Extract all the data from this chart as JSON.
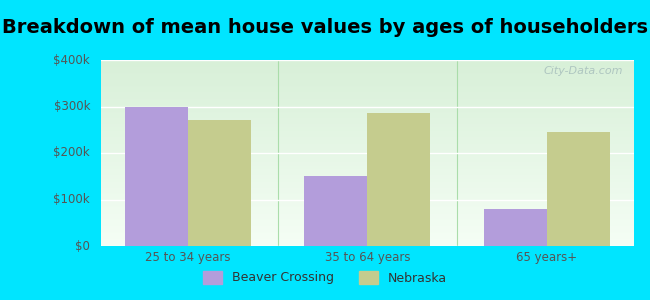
{
  "title": "Breakdown of mean house values by ages of householders",
  "categories": [
    "25 to 34 years",
    "35 to 64 years",
    "65 years+"
  ],
  "beaver_crossing": [
    300000,
    150000,
    80000
  ],
  "nebraska": [
    270000,
    285000,
    245000
  ],
  "bar_color_beaver": "#b39ddb",
  "bar_color_nebraska": "#c5cc8e",
  "ylim": [
    0,
    400000
  ],
  "yticks": [
    0,
    100000,
    200000,
    300000,
    400000
  ],
  "ytick_labels": [
    "$0",
    "$100k",
    "$200k",
    "$300k",
    "$400k"
  ],
  "background_outer": "#00e5ff",
  "legend_beaver": "Beaver Crossing",
  "legend_nebraska": "Nebraska",
  "title_fontsize": 14,
  "bar_width": 0.35,
  "watermark": "City-Data.com"
}
